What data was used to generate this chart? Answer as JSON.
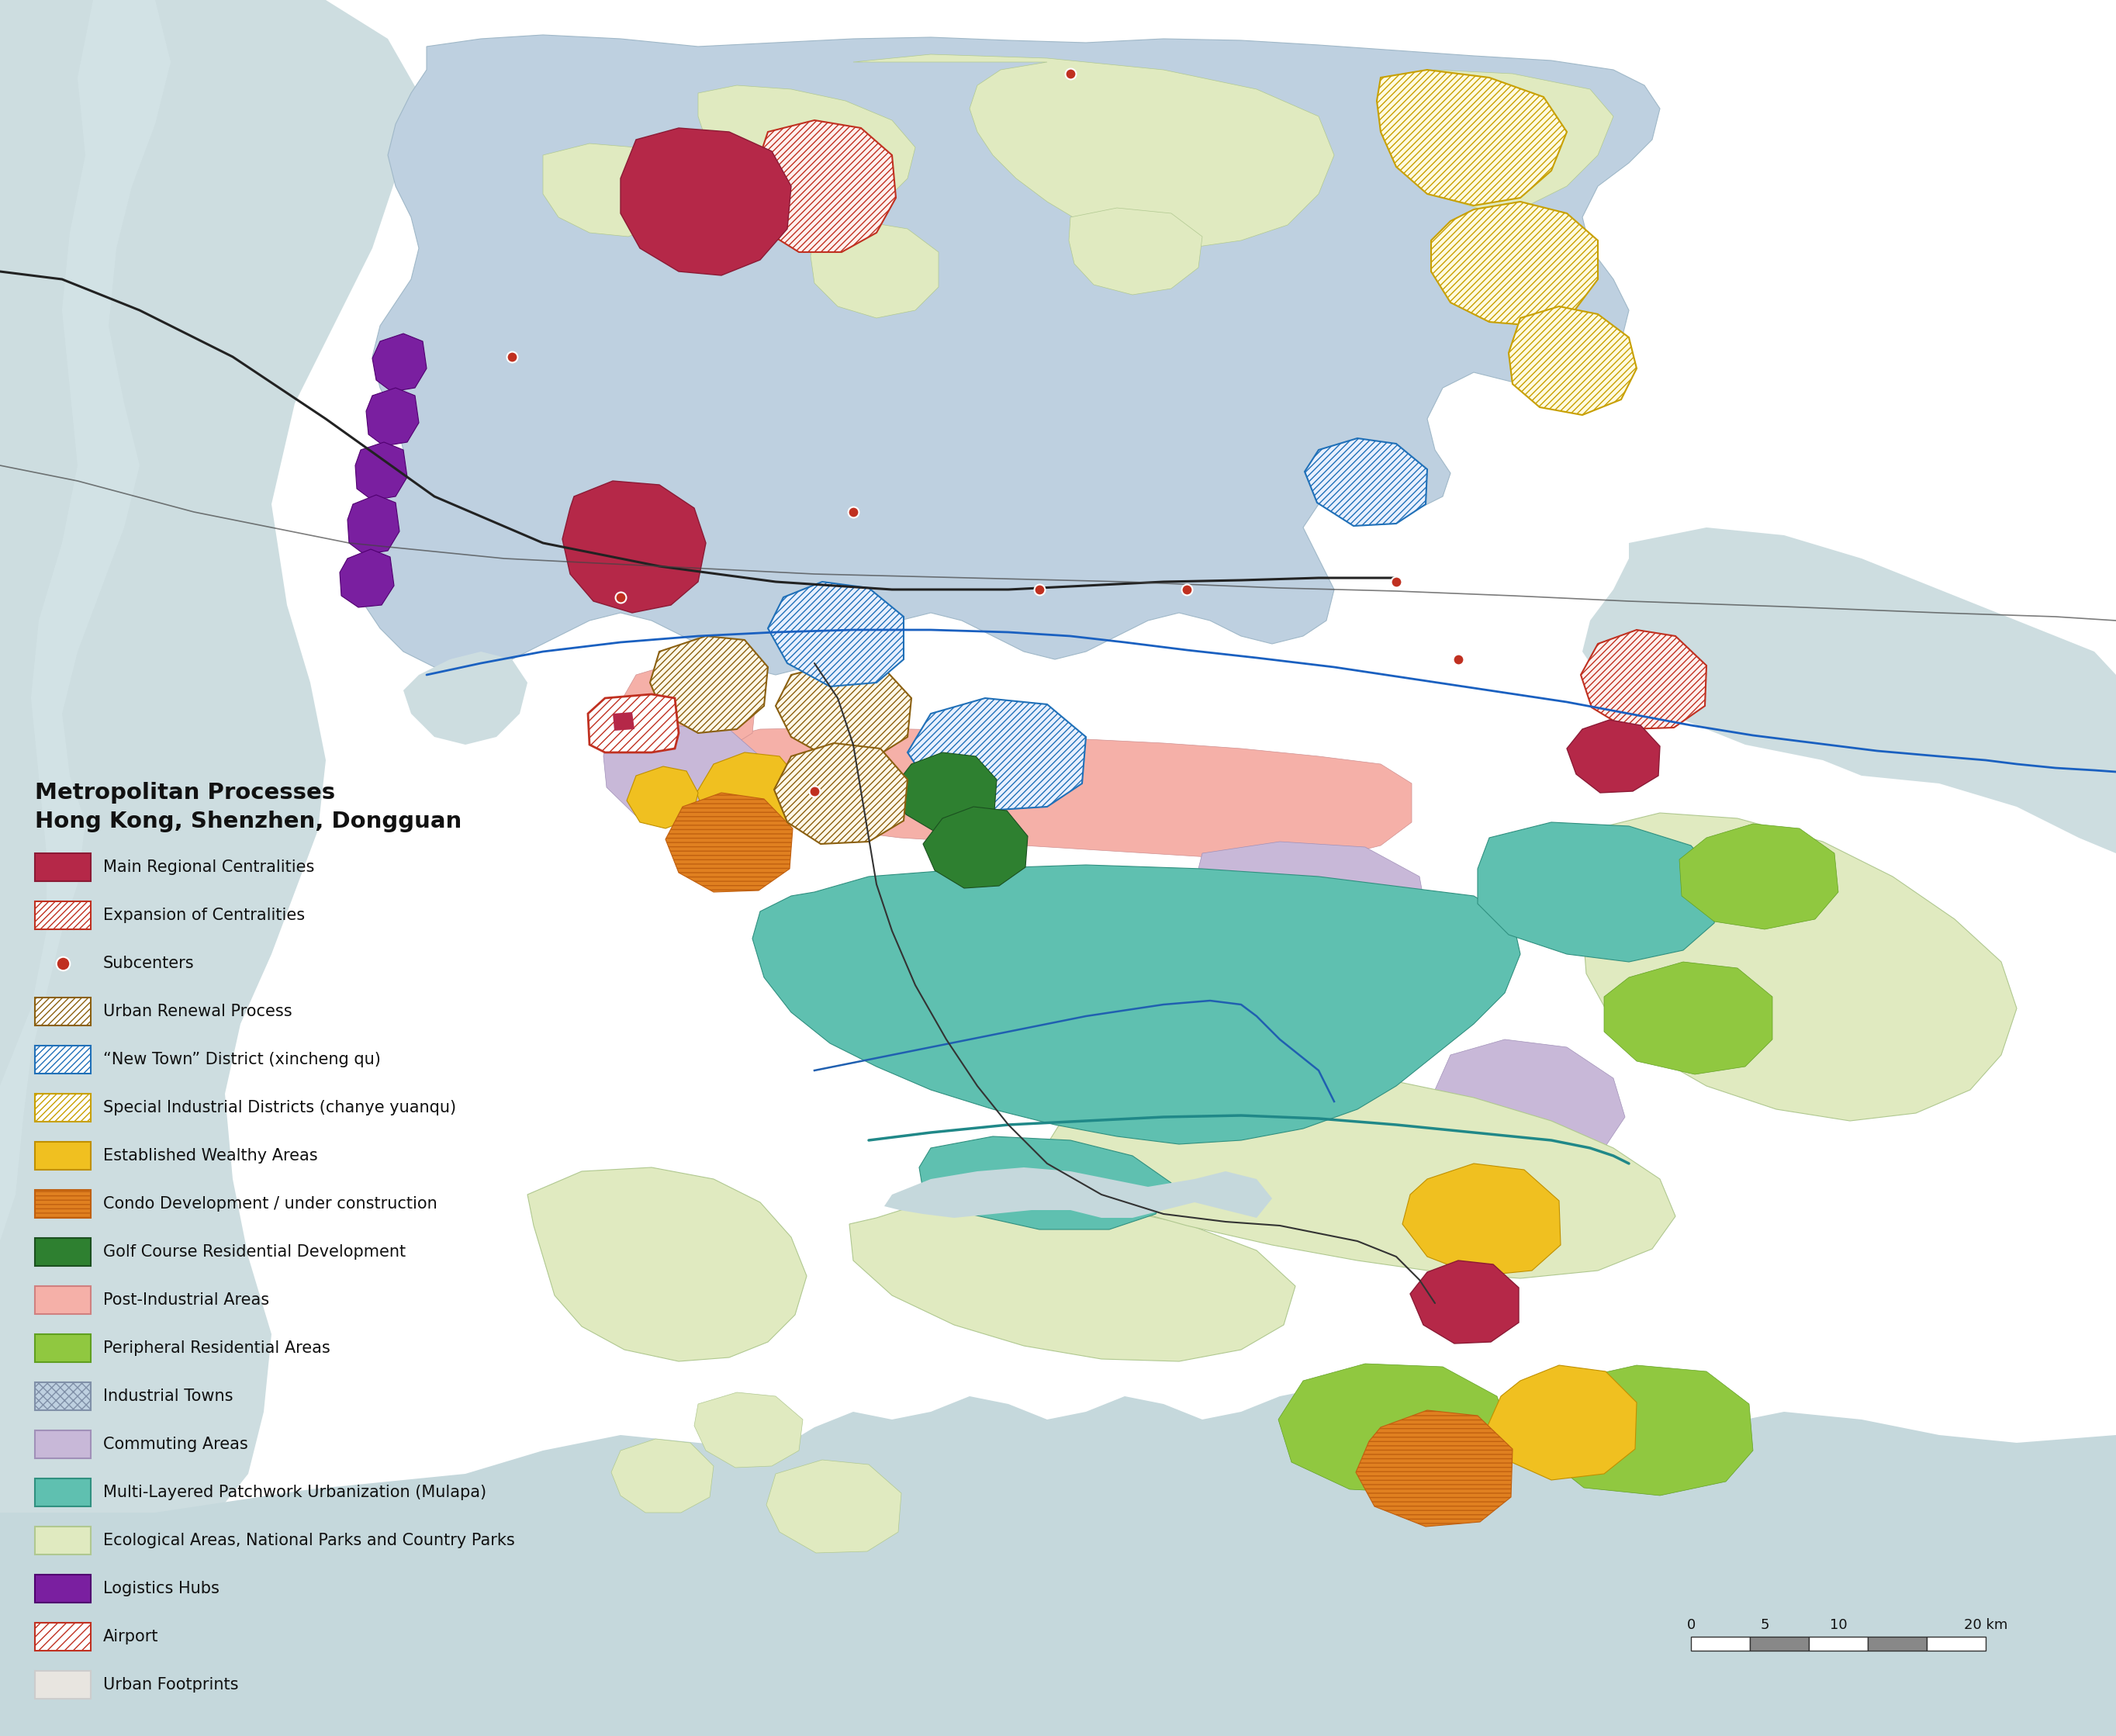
{
  "title_line1": "Metropolitan Processes",
  "title_line2": "Hong Kong, Shenzhen, Dongguan",
  "bg_color": "#f5f5f2",
  "water_color": "#c8dde0",
  "water_light": "#dceaec",
  "land_base": "#ffffff",
  "urban_footprint_color": "#e8e5e0",
  "industrial_town_color": "#bed0e0",
  "ecological_color": "#e0eac0",
  "mulapa_color": "#5fc0b0",
  "post_industrial_color": "#f5b0a8",
  "commuting_color": "#c8b8d8",
  "periph_res_color": "#90c840",
  "wealthy_color": "#f0c020",
  "condo_color": "#e08020",
  "golf_color": "#2e8030",
  "logistics_color": "#7a1fa0",
  "mrc_color": "#b52848",
  "exp_cent_color": "#c03020",
  "urban_renewal_color": "#8b6010",
  "new_town_color": "#2070b8",
  "sid_color": "#c8a000",
  "subcenter_color": "#c03020",
  "airport_outline_color": "#c03020",
  "border_blue_color": "#1a60c0",
  "border_teal_color": "#208888",
  "road_color_dark": "#555555",
  "road_color_black": "#222222",
  "legend_items": [
    {
      "label": "Main Regional Centralities",
      "type": "patch",
      "facecolor": "#b52848",
      "edgecolor": "#8b1a35",
      "hatch": ""
    },
    {
      "label": "Expansion of Centralities",
      "type": "patch",
      "facecolor": "#ffffff",
      "edgecolor": "#c03020",
      "hatch": "////"
    },
    {
      "label": "Subcenters",
      "type": "dot",
      "color": "#c03020"
    },
    {
      "label": "Urban Renewal Process",
      "type": "patch",
      "facecolor": "#ffffff",
      "edgecolor": "#8b6010",
      "hatch": "////"
    },
    {
      "label": "“New Town” District (xincheng qu)",
      "type": "patch",
      "facecolor": "#ffffff",
      "edgecolor": "#2070b8",
      "hatch": "////"
    },
    {
      "label": "Special Industrial Districts (chanye yuanqu)",
      "type": "patch",
      "facecolor": "#ffffff",
      "edgecolor": "#c8a000",
      "hatch": "////"
    },
    {
      "label": "Established Wealthy Areas",
      "type": "patch",
      "facecolor": "#f0c020",
      "edgecolor": "#c09000",
      "hatch": ""
    },
    {
      "label": "Condo Development / under construction",
      "type": "patch",
      "facecolor": "#e08020",
      "edgecolor": "#c06010",
      "hatch": "---"
    },
    {
      "label": "Golf Course Residential Development",
      "type": "patch",
      "facecolor": "#2e8030",
      "edgecolor": "#1b5020",
      "hatch": ""
    },
    {
      "label": "Post-Industrial Areas",
      "type": "patch",
      "facecolor": "#f5b0a8",
      "edgecolor": "#d08080",
      "hatch": ""
    },
    {
      "label": "Peripheral Residential Areas",
      "type": "patch",
      "facecolor": "#90c840",
      "edgecolor": "#60a020",
      "hatch": ""
    },
    {
      "label": "Industrial Towns",
      "type": "patch",
      "facecolor": "#bed0e0",
      "edgecolor": "#8090a8",
      "hatch": "xxx"
    },
    {
      "label": "Commuting Areas",
      "type": "patch",
      "facecolor": "#c8b8d8",
      "edgecolor": "#a090b8",
      "hatch": ""
    },
    {
      "label": "Multi-Layered Patchwork Urbanization (Mulapa)",
      "type": "patch",
      "facecolor": "#5fc0b0",
      "edgecolor": "#309080",
      "hatch": ""
    },
    {
      "label": "Ecological Areas, National Parks and Country Parks",
      "type": "patch",
      "facecolor": "#e0eac0",
      "edgecolor": "#b0c890",
      "hatch": ""
    },
    {
      "label": "Logistics Hubs",
      "type": "patch",
      "facecolor": "#7a1fa0",
      "edgecolor": "#500070",
      "hatch": ""
    },
    {
      "label": "Airport",
      "type": "patch",
      "facecolor": "#ffffff",
      "edgecolor": "#c03020",
      "hatch": "///"
    },
    {
      "label": "Urban Footprints",
      "type": "patch",
      "facecolor": "#e8e5e0",
      "edgecolor": "#cccccc",
      "hatch": ""
    }
  ],
  "scale_labels": [
    "0",
    "5",
    "10",
    "20 km"
  ]
}
